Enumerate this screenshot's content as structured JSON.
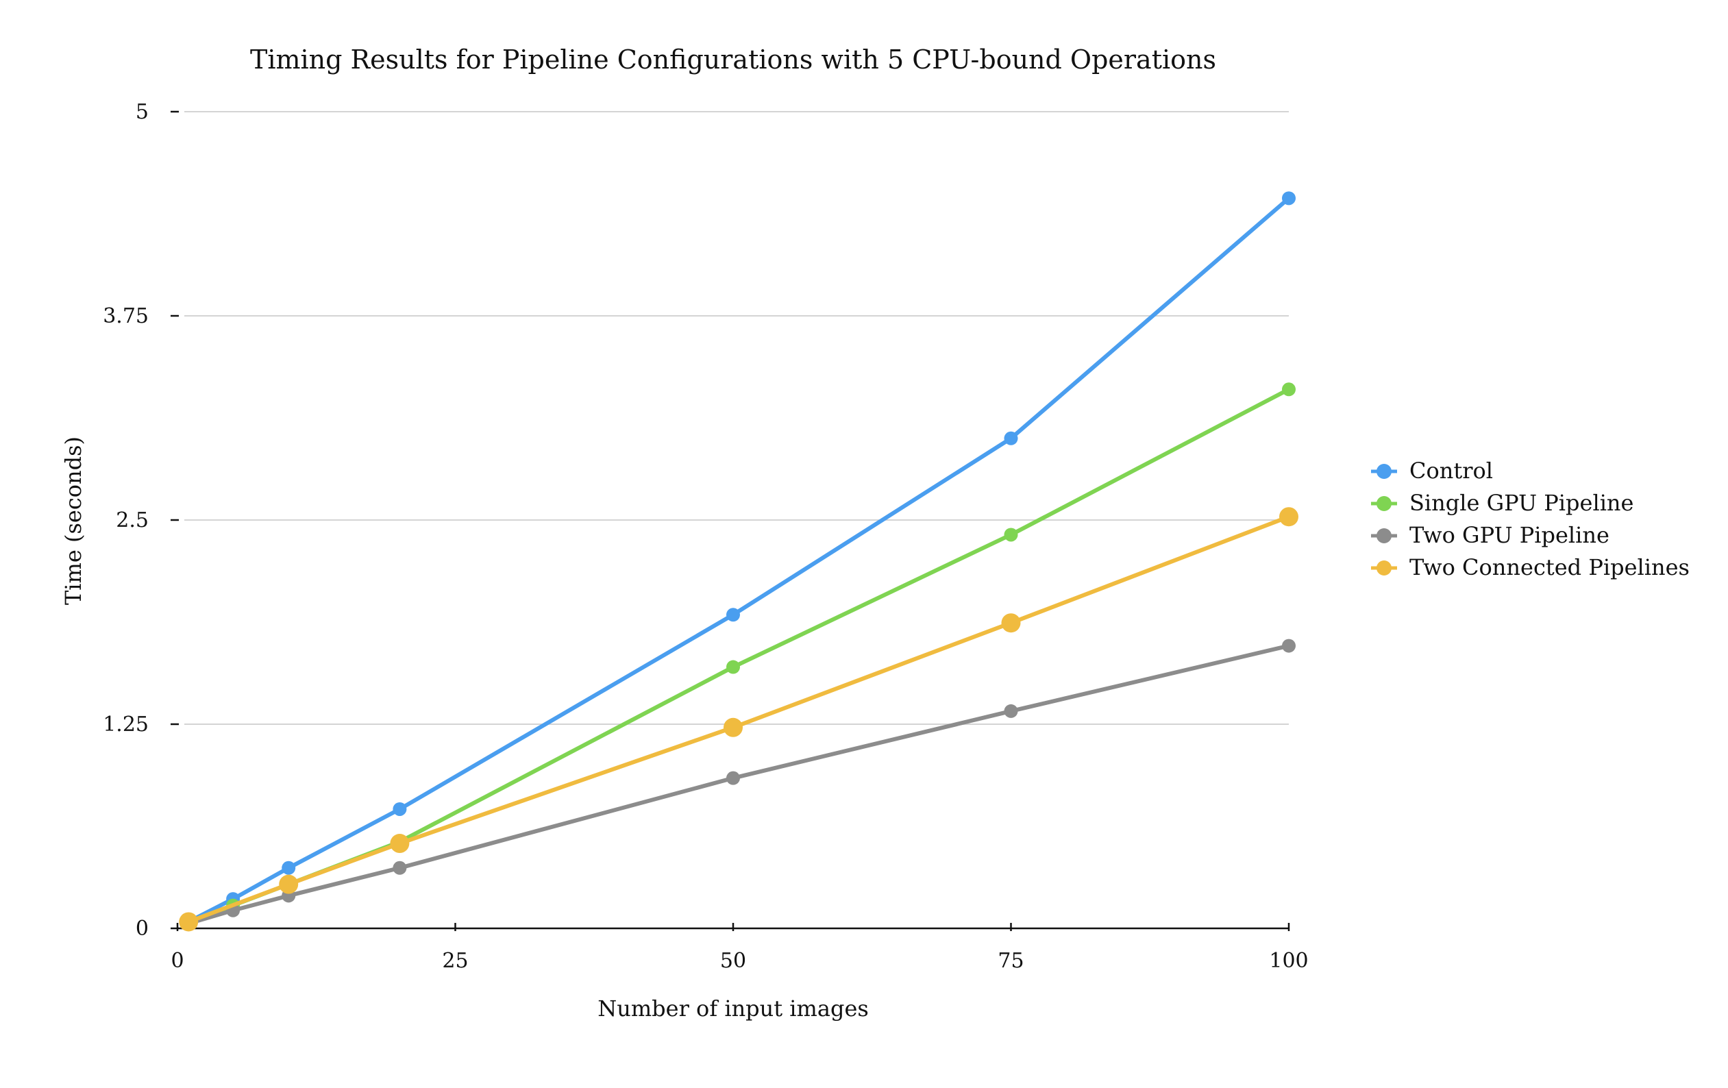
{
  "chart_data": {
    "type": "line",
    "title": "Timing Results for Pipeline Configurations with 5 CPU-bound Operations",
    "xlabel": "Number of input images",
    "ylabel": "Time (seconds)",
    "xlim": [
      0,
      100
    ],
    "ylim": [
      0,
      5
    ],
    "xticks": [
      0,
      25,
      50,
      75,
      100
    ],
    "xtick_labels": [
      "0",
      "25",
      "50",
      "75",
      "100"
    ],
    "yticks": [
      0,
      1.25,
      2.5,
      3.75,
      5
    ],
    "ytick_labels": [
      "0",
      "1.25",
      "2.5",
      "3.75",
      "5"
    ],
    "grid": "horizontal",
    "legend_position": "right",
    "series": [
      {
        "name": "Control",
        "color": "#4a9eef",
        "x": [
          1,
          5,
          10,
          20,
          50,
          75,
          100
        ],
        "y": [
          0.04,
          0.18,
          0.37,
          0.73,
          1.92,
          3.0,
          4.47
        ]
      },
      {
        "name": "Single GPU Pipeline",
        "color": "#7fd452",
        "x": [
          1,
          5,
          10,
          20,
          50,
          75,
          100
        ],
        "y": [
          0.03,
          0.14,
          0.27,
          0.53,
          1.6,
          2.41,
          3.3
        ]
      },
      {
        "name": "Two GPU Pipeline",
        "color": "#8c8c8c",
        "x": [
          1,
          5,
          10,
          20,
          50,
          75,
          100
        ],
        "y": [
          0.03,
          0.11,
          0.2,
          0.37,
          0.92,
          1.33,
          1.73
        ]
      },
      {
        "name": "Two Connected Pipelines",
        "color": "#f0bb3f",
        "x": [
          1,
          10,
          20,
          50,
          75,
          100
        ],
        "y": [
          0.04,
          0.27,
          0.52,
          1.23,
          1.87,
          2.52
        ]
      }
    ]
  }
}
